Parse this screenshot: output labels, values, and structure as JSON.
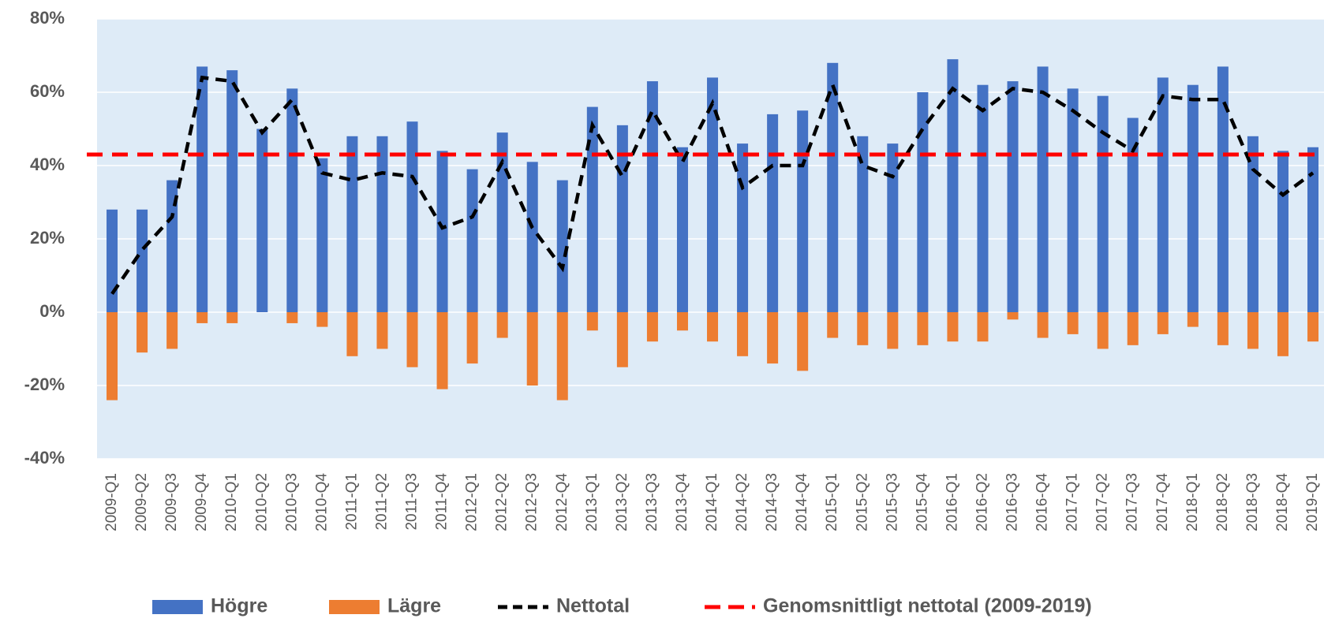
{
  "chart_data": {
    "type": "bar",
    "categories": [
      "2009-Q1",
      "2009-Q2",
      "2009-Q3",
      "2009-Q4",
      "2010-Q1",
      "2010-Q2",
      "2010-Q3",
      "2010-Q4",
      "2011-Q1",
      "2011-Q2",
      "2011-Q3",
      "2011-Q4",
      "2012-Q1",
      "2012-Q2",
      "2012-Q3",
      "2012-Q4",
      "2013-Q1",
      "2013-Q2",
      "2013-Q3",
      "2013-Q4",
      "2014-Q1",
      "2014-Q2",
      "2014-Q3",
      "2014-Q4",
      "2015-Q1",
      "2015-Q2",
      "2015-Q3",
      "2015-Q4",
      "2016-Q1",
      "2016-Q2",
      "2016-Q3",
      "2016-Q4",
      "2017-Q1",
      "2017-Q2",
      "2017-Q3",
      "2017-Q4",
      "2018-Q1",
      "2018-Q2",
      "2018-Q3",
      "2018-Q4",
      "2019-Q1"
    ],
    "series": [
      {
        "name": "Högre",
        "kind": "bar",
        "color": "#4472c4",
        "values": [
          28,
          28,
          36,
          67,
          66,
          50,
          61,
          42,
          48,
          48,
          52,
          44,
          39,
          49,
          41,
          36,
          56,
          51,
          63,
          45,
          64,
          46,
          54,
          55,
          68,
          48,
          46,
          60,
          69,
          62,
          63,
          67,
          61,
          59,
          53,
          64,
          62,
          67,
          48,
          44,
          45
        ]
      },
      {
        "name": "Lägre",
        "kind": "bar",
        "color": "#ed7d31",
        "values": [
          -24,
          -11,
          -10,
          -3,
          -3,
          0,
          -3,
          -4,
          -12,
          -10,
          -15,
          -21,
          -14,
          -7,
          -20,
          -24,
          -5,
          -15,
          -8,
          -5,
          -8,
          -12,
          -14,
          -16,
          -7,
          -9,
          -10,
          -9,
          -8,
          -8,
          -2,
          -7,
          -6,
          -10,
          -9,
          -6,
          -4,
          -9,
          -10,
          -12,
          -8
        ]
      },
      {
        "name": "Nettotal",
        "kind": "line",
        "color": "#000000",
        "values": [
          5,
          17,
          26,
          64,
          63,
          49,
          58,
          38,
          36,
          38,
          37,
          23,
          26,
          41,
          23,
          12,
          51,
          37,
          55,
          41,
          57,
          34,
          40,
          40,
          62,
          40,
          37,
          50,
          61,
          55,
          61,
          60,
          55,
          49,
          44,
          59,
          58,
          58,
          39,
          32,
          38
        ]
      },
      {
        "name": "Genomsnittligt nettotal (2009-2019)",
        "kind": "hline",
        "color": "#ff0000",
        "value": 43
      }
    ],
    "ylim": [
      -40,
      80
    ],
    "yticks": [
      {
        "value": -40,
        "label": "-40%"
      },
      {
        "value": -20,
        "label": "-20%"
      },
      {
        "value": 0,
        "label": "0%"
      },
      {
        "value": 20,
        "label": "20%"
      },
      {
        "value": 40,
        "label": "40%"
      },
      {
        "value": 60,
        "label": "60%"
      },
      {
        "value": 80,
        "label": "80%"
      }
    ],
    "grid": true,
    "background": "#deebf7",
    "legend": "bottom"
  }
}
